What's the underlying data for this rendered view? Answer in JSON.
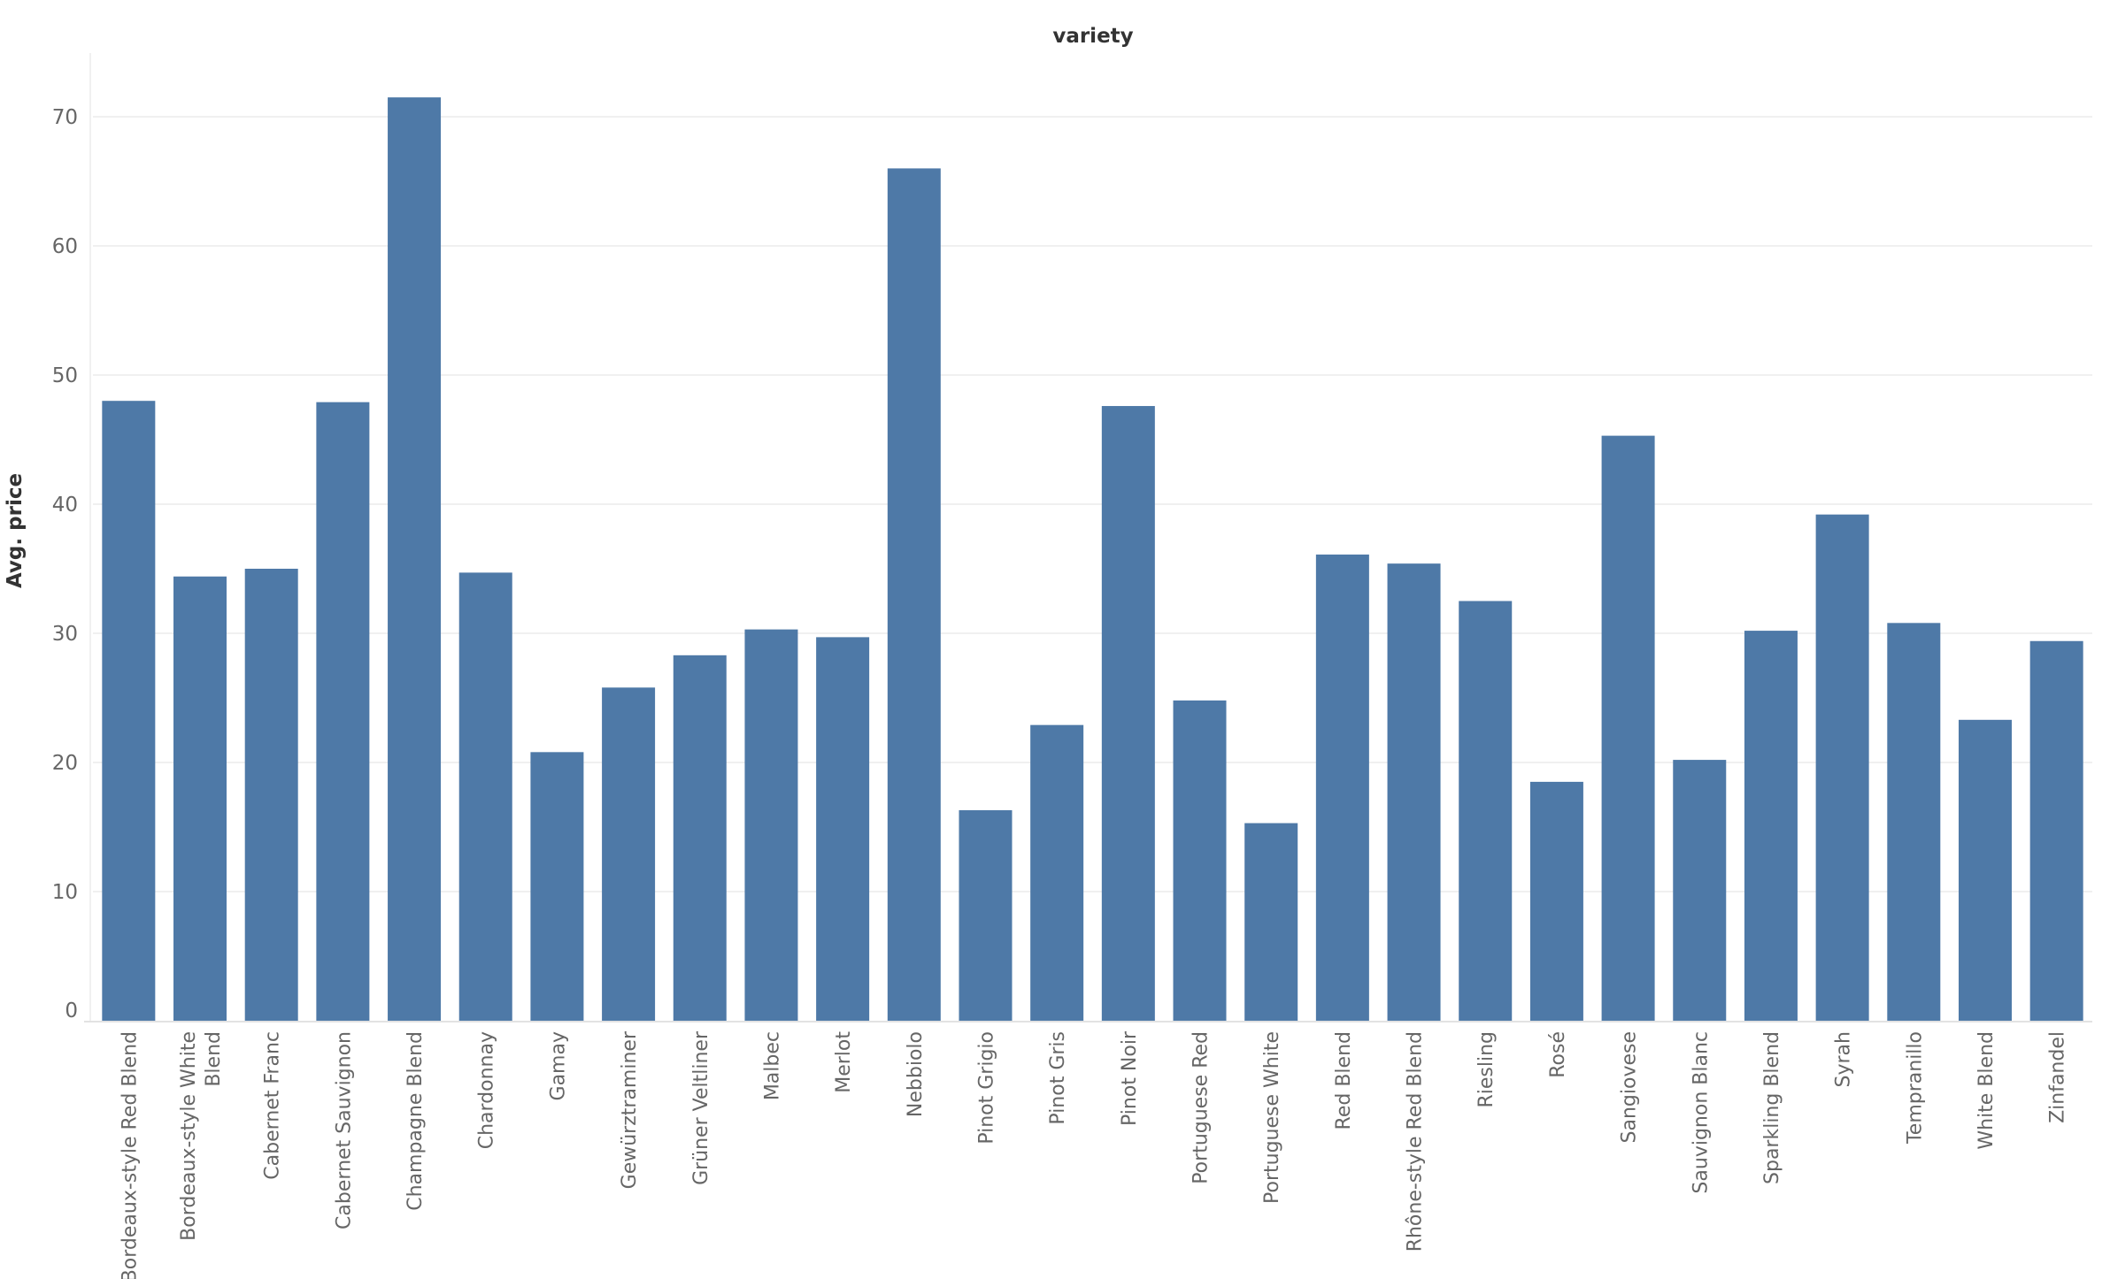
{
  "chart_data": {
    "type": "bar",
    "title": "variety",
    "xlabel": "",
    "ylabel": "Avg. price",
    "ylim": [
      0,
      75
    ],
    "yticks": [
      0,
      10,
      20,
      30,
      40,
      50,
      60,
      70
    ],
    "grid": true,
    "bar_color": "#4e79a7",
    "categories": [
      "Bordeaux-style Red Blend",
      "Bordeaux-style White Blend",
      "Cabernet Franc",
      "Cabernet Sauvignon",
      "Champagne Blend",
      "Chardonnay",
      "Gamay",
      "Gewürztraminer",
      "Grüner Veltliner",
      "Malbec",
      "Merlot",
      "Nebbiolo",
      "Pinot Grigio",
      "Pinot Gris",
      "Pinot Noir",
      "Portuguese Red",
      "Portuguese White",
      "Red Blend",
      "Rhône-style Red Blend",
      "Riesling",
      "Rosé",
      "Sangiovese",
      "Sauvignon Blanc",
      "Sparkling Blend",
      "Syrah",
      "Tempranillo",
      "White Blend",
      "Zinfandel"
    ],
    "category_label_lines": [
      [
        "Bordeaux-style Red Blend"
      ],
      [
        "Bordeaux-style White",
        "Blend"
      ],
      [
        "Cabernet Franc"
      ],
      [
        "Cabernet Sauvignon"
      ],
      [
        "Champagne Blend"
      ],
      [
        "Chardonnay"
      ],
      [
        "Gamay"
      ],
      [
        "Gewürztraminer"
      ],
      [
        "Grüner Veltliner"
      ],
      [
        "Malbec"
      ],
      [
        "Merlot"
      ],
      [
        "Nebbiolo"
      ],
      [
        "Pinot Grigio"
      ],
      [
        "Pinot Gris"
      ],
      [
        "Pinot Noir"
      ],
      [
        "Portuguese Red"
      ],
      [
        "Portuguese White"
      ],
      [
        "Red Blend"
      ],
      [
        "Rhône-style Red Blend"
      ],
      [
        "Riesling"
      ],
      [
        "Rosé"
      ],
      [
        "Sangiovese"
      ],
      [
        "Sauvignon Blanc"
      ],
      [
        "Sparkling Blend"
      ],
      [
        "Syrah"
      ],
      [
        "Tempranillo"
      ],
      [
        "White Blend"
      ],
      [
        "Zinfandel"
      ]
    ],
    "values": [
      48.0,
      34.4,
      35.0,
      47.9,
      71.5,
      34.7,
      20.8,
      25.8,
      28.3,
      30.3,
      29.7,
      66.0,
      16.3,
      22.9,
      47.6,
      24.8,
      15.3,
      36.1,
      35.4,
      32.5,
      18.5,
      45.3,
      20.2,
      30.2,
      39.2,
      30.8,
      23.3,
      29.4
    ]
  }
}
